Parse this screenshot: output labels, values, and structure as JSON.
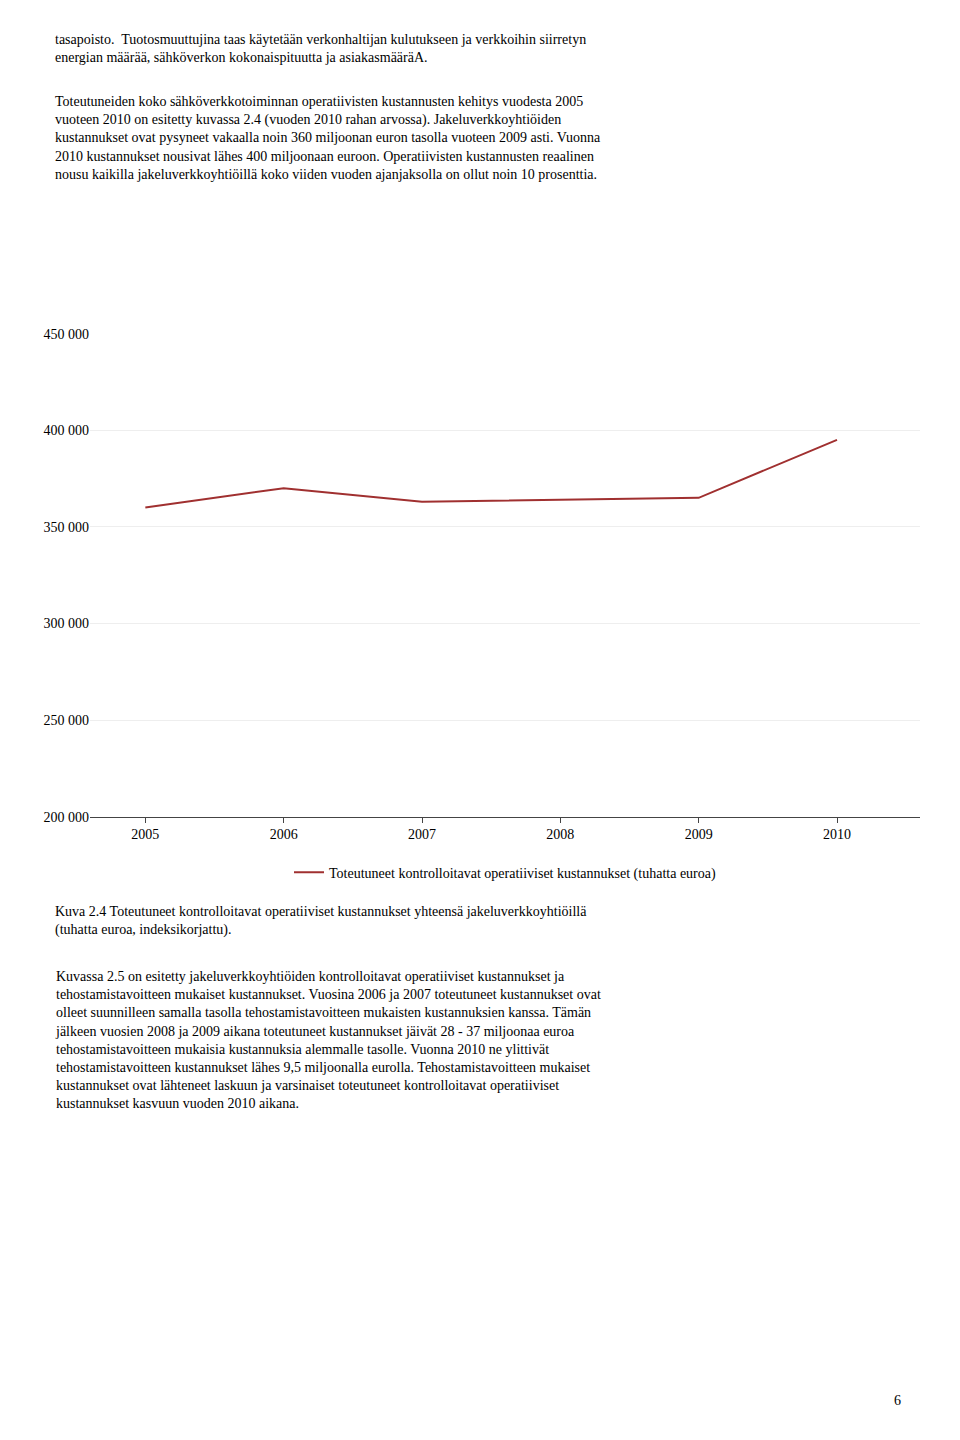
{
  "chart_data": {
    "type": "line",
    "x": [
      2005,
      2006,
      2007,
      2008,
      2009,
      2010
    ],
    "series": [
      {
        "name": "Toteutuneet kontrolloitavat operatiiviset kustannukset (tuhatta euroa)",
        "color": "#a03030",
        "values": [
          360000,
          370000,
          363000,
          364000,
          365000,
          395000
        ]
      }
    ],
    "xlim": [
      2004.6,
      2010.6
    ],
    "xticks": [
      2005,
      2006,
      2007,
      2008,
      2009,
      2010
    ],
    "ylim": [
      200000,
      450000
    ],
    "yticks": [
      {
        "value": 200000,
        "label": "200 000"
      },
      {
        "value": 250000,
        "label": "250 000"
      },
      {
        "value": 300000,
        "label": "300 000"
      },
      {
        "value": 350000,
        "label": "350 000"
      },
      {
        "value": 400000,
        "label": "400 000"
      },
      {
        "value": 450000,
        "label": "450 000"
      }
    ],
    "grid": "y",
    "legend": "bottom",
    "annotations": [
      "tasapoisto.  Tuotosmuuttujina taas käytetään verkonhaltijan kulutukseen ja verkkoihin siirretyn\nenergian määrää, sähköverkon kokonaispituutta ja asiakasmääräA.",
      "Toteutuneiden koko sähköverkkotoiminnan operatiivisten kustannusten kehitys vuodesta 2005\nvuoteen 2010 on esitetty kuvassa 2.4 (vuoden 2010 rahan arvossa). Jakeluverkkoyhtiöiden\nkustannukset ovat pysyneet vakaalla noin 360 miljoonan euron tasolla vuoteen 2009 asti. Vuonna\n2010 kustannukset nousivat lähes 400 miljoonaan euroon. Operatiivisten kustannusten reaalinen\nnousu kaikilla jakeluverkkoyhtiöillä koko viiden vuoden ajanjaksolla on ollut noin 10 prosenttia.",
      "Kuva 2.4 Toteutuneet kontrolloitavat operatiiviset kustannukset yhteensä jakeluverkkoyhtiöillä\n(tuhatta euroa, indeksikorjattu).",
      "Kuvassa 2.5 on esitetty jakeluverkkoyhtiöiden kontrolloitavat operatiiviset kustannukset ja\ntehostamistavoitteen mukaiset kustannukset. Vuosina 2006 ja 2007 toteutuneet kustannukset ovat\nolleet suunnilleen samalla tasolla tehostamistavoitteen mukaisten kustannuksien kanssa. Tämän\njälkeen vuosien 2008 ja 2009 aikana toteutuneet kustannukset jäivät 28 - 37 miljoonaa euroa\ntehostamistavoitteen mukaisia kustannuksia alemmalle tasolle. Vuonna 2010 ne ylittivät\ntehostamistavoitteen kustannukset lähes 9,5 miljoonalla eurolla. Tehostamistavoitteen mukaiset\nkustannukset ovat lähteneet laskuun ja varsinaiset toteutuneet kontrolloitavat operatiiviset\nkustannukset kasvuun vuoden 2010 aikana.",
      "6"
    ]
  }
}
